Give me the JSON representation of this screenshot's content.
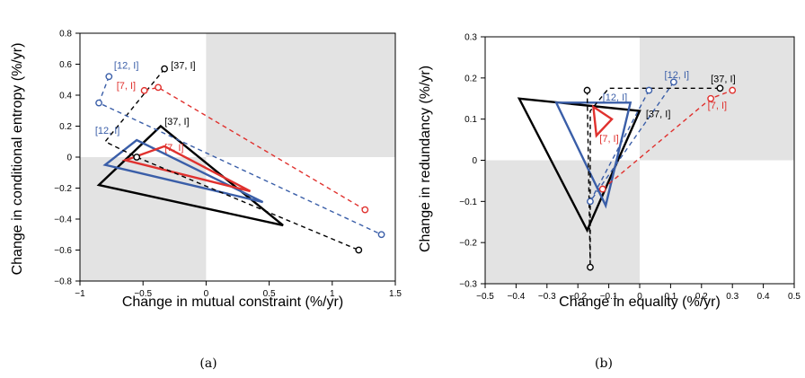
{
  "colors": {
    "black": "#000000",
    "blue": "#3a5ea8",
    "red": "#e0312e",
    "shade": "#e3e3e3"
  },
  "chart_data": [
    {
      "type": "line",
      "caption": "(a)",
      "xlabel": "Change in mutual constraint (%/yr)",
      "ylabel": "Change in conditional entropy (%/yr)",
      "xlim": [
        -1,
        1.5
      ],
      "ylim": [
        -0.8,
        0.8
      ],
      "xticks": [
        -1,
        -0.5,
        0,
        0.5,
        1,
        1.5
      ],
      "xtick_labels": [
        "−1",
        "−0.5",
        "0",
        "0.5",
        "1",
        "1.5"
      ],
      "yticks": [
        -0.8,
        -0.6,
        -0.4,
        -0.2,
        0,
        0.2,
        0.4,
        0.6,
        0.8
      ],
      "ytick_labels": [
        "−0.8",
        "−0.6",
        "−0.4",
        "−0.2",
        "0",
        "0.2",
        "0.4",
        "0.6",
        "0.8"
      ],
      "shaded_quadrants": [
        "top-right",
        "bottom-left"
      ],
      "series": [
        {
          "color": "black",
          "style": "solid",
          "closed": true,
          "points": [
            [
              -0.85,
              -0.18
            ],
            [
              -0.36,
              0.2
            ],
            [
              0.61,
              -0.44
            ]
          ]
        },
        {
          "color": "blue",
          "style": "solid",
          "closed": true,
          "points": [
            [
              -0.8,
              -0.05
            ],
            [
              -0.55,
              0.11
            ],
            [
              0.45,
              -0.29
            ]
          ]
        },
        {
          "color": "red",
          "style": "solid",
          "closed": true,
          "points": [
            [
              -0.64,
              -0.02
            ],
            [
              -0.33,
              0.07
            ],
            [
              0.35,
              -0.22
            ]
          ]
        },
        {
          "color": "black",
          "style": "dashed",
          "closed": false,
          "markers": [
            0,
            2,
            3
          ],
          "points": [
            [
              -0.33,
              0.57
            ],
            [
              -0.8,
              0.1
            ],
            [
              -0.55,
              0.0
            ],
            [
              1.21,
              -0.6
            ]
          ]
        },
        {
          "color": "blue",
          "style": "dashed",
          "closed": false,
          "markers": [
            0,
            1,
            2
          ],
          "points": [
            [
              -0.77,
              0.52
            ],
            [
              -0.85,
              0.35
            ],
            [
              1.39,
              -0.5
            ]
          ]
        },
        {
          "color": "red",
          "style": "dashed",
          "closed": false,
          "markers": [
            0,
            1,
            2
          ],
          "points": [
            [
              -0.49,
              0.43
            ],
            [
              -0.38,
              0.45
            ],
            [
              1.26,
              -0.34
            ]
          ]
        }
      ],
      "annotations": [
        {
          "text": "[37, I]",
          "x": -0.28,
          "y": 0.57,
          "color": "black"
        },
        {
          "text": "[12, I]",
          "x": -0.73,
          "y": 0.57,
          "color": "blue"
        },
        {
          "text": "[7, I]",
          "x": -0.71,
          "y": 0.44,
          "color": "red"
        },
        {
          "text": "[37, I]",
          "x": -0.33,
          "y": 0.21,
          "color": "black"
        },
        {
          "text": "[12, I]",
          "x": -0.88,
          "y": 0.15,
          "color": "blue"
        },
        {
          "text": "[7, I]",
          "x": -0.33,
          "y": 0.04,
          "color": "red"
        }
      ]
    },
    {
      "type": "line",
      "caption": "(b)",
      "xlabel": "Change in equality (%/yr)",
      "ylabel": "Change in redundancy (%/yr)",
      "xlim": [
        -0.5,
        0.5
      ],
      "ylim": [
        -0.3,
        0.3
      ],
      "xticks": [
        -0.5,
        -0.4,
        -0.3,
        -0.2,
        -0.1,
        0,
        0.1,
        0.2,
        0.3,
        0.4,
        0.5
      ],
      "xtick_labels": [
        "−0.5",
        "−0.4",
        "−0.3",
        "−0.2",
        "−0.1",
        "0",
        "0.1",
        "0.2",
        "0.3",
        "0.4",
        "0.5"
      ],
      "yticks": [
        -0.3,
        -0.2,
        -0.1,
        0,
        0.1,
        0.2,
        0.3
      ],
      "ytick_labels": [
        "−0.3",
        "−0.2",
        "−0.1",
        "0",
        "0.1",
        "0.2",
        "0.3"
      ],
      "shaded_quadrants": [
        "top-right",
        "bottom-left"
      ],
      "series": [
        {
          "color": "black",
          "style": "solid",
          "closed": true,
          "points": [
            [
              -0.39,
              0.15
            ],
            [
              -0.17,
              -0.17
            ],
            [
              0.0,
              0.12
            ]
          ]
        },
        {
          "color": "blue",
          "style": "solid",
          "closed": true,
          "points": [
            [
              -0.27,
              0.14
            ],
            [
              -0.11,
              -0.11
            ],
            [
              -0.03,
              0.14
            ]
          ]
        },
        {
          "color": "red",
          "style": "solid",
          "closed": true,
          "points": [
            [
              -0.15,
              0.13
            ],
            [
              -0.14,
              0.06
            ],
            [
              -0.09,
              0.1
            ]
          ]
        },
        {
          "color": "black",
          "style": "dashed",
          "closed": false,
          "markers": [
            0,
            1,
            4
          ],
          "points": [
            [
              -0.17,
              0.17
            ],
            [
              -0.16,
              -0.26
            ],
            [
              -0.16,
              0.12
            ],
            [
              -0.1,
              0.175
            ],
            [
              0.26,
              0.175
            ]
          ]
        },
        {
          "color": "blue",
          "style": "dashed",
          "closed": false,
          "markers": [
            0,
            1,
            2
          ],
          "points": [
            [
              0.03,
              0.17
            ],
            [
              -0.16,
              -0.1
            ],
            [
              0.11,
              0.19
            ]
          ]
        },
        {
          "color": "red",
          "style": "dashed",
          "closed": false,
          "markers": [
            0,
            1,
            2
          ],
          "points": [
            [
              -0.12,
              -0.07
            ],
            [
              0.23,
              0.15
            ],
            [
              0.3,
              0.17
            ]
          ]
        }
      ],
      "annotations": [
        {
          "text": "[12, I]",
          "x": 0.08,
          "y": 0.2,
          "color": "blue"
        },
        {
          "text": "[37, I]",
          "x": 0.23,
          "y": 0.19,
          "color": "black"
        },
        {
          "text": "[12, I]",
          "x": -0.12,
          "y": 0.145,
          "color": "blue"
        },
        {
          "text": "[37, I]",
          "x": 0.02,
          "y": 0.105,
          "color": "black"
        },
        {
          "text": "[7, I]",
          "x": 0.22,
          "y": 0.125,
          "color": "red"
        },
        {
          "text": "[7, I]",
          "x": -0.13,
          "y": 0.045,
          "color": "red"
        }
      ]
    }
  ]
}
